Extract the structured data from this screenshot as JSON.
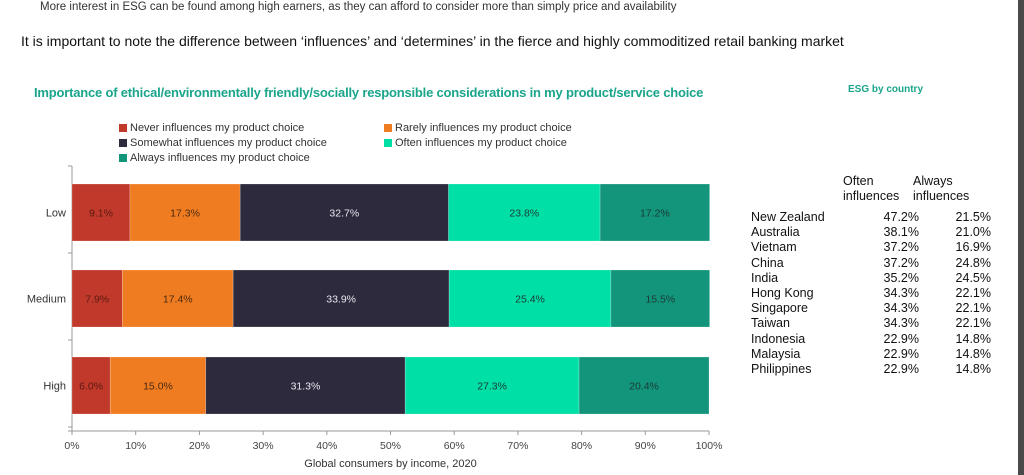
{
  "page": {
    "subnote": "More interest in ESG can be found among high earners, as they can afford to consider more than simply price and availability",
    "headline": "It is important to note the difference between ‘influences’ and ‘determines’ in the fierce and highly commoditized retail banking market"
  },
  "colors": {
    "never": "#c0392b",
    "rarely": "#f07c22",
    "somewhat": "#2e2a3e",
    "often": "#00dfa5",
    "always": "#12957a",
    "title": "#1aa58b"
  },
  "chart_data": {
    "type": "bar",
    "orientation": "horizontal",
    "stacked": true,
    "title": "Importance of ethical/environmentally friendly/socially responsible considerations in my product/service choice",
    "xlabel": "Global consumers by income, 2020",
    "ylabel": "",
    "xlim": [
      0,
      100
    ],
    "x_ticks": [
      "0%",
      "10%",
      "20%",
      "30%",
      "40%",
      "50%",
      "60%",
      "70%",
      "80%",
      "90%",
      "100%"
    ],
    "categories": [
      "Low",
      "Medium",
      "High"
    ],
    "legend_position": "top-left",
    "series": [
      {
        "name": "Never influences my product choice",
        "key": "never",
        "values": [
          9.1,
          7.9,
          6.0
        ],
        "labels": [
          "9.1%",
          "7.9%",
          "6.0%"
        ]
      },
      {
        "name": "Rarely influences my product choice",
        "key": "rarely",
        "values": [
          17.3,
          17.4,
          15.0
        ],
        "labels": [
          "17.3%",
          "17.4%",
          "15.0%"
        ]
      },
      {
        "name": "Somewhat influences my product choice",
        "key": "somewhat",
        "values": [
          32.7,
          33.9,
          31.3
        ],
        "labels": [
          "32.7%",
          "33.9%",
          "31.3%"
        ]
      },
      {
        "name": "Often influences my product choice",
        "key": "often",
        "values": [
          23.8,
          25.4,
          27.3
        ],
        "labels": [
          "23.8%",
          "25.4%",
          "27.3%"
        ]
      },
      {
        "name": "Always influences my product choice",
        "key": "always",
        "values": [
          17.2,
          15.5,
          20.4
        ],
        "labels": [
          "17.2%",
          "15.5%",
          "20.4%"
        ]
      }
    ]
  },
  "esg_table": {
    "title": "ESG by country",
    "headers": [
      {
        "line1": "Often",
        "line2": "influences"
      },
      {
        "line1": "Always",
        "line2": "influences"
      }
    ],
    "rows": [
      {
        "country": "New Zealand",
        "often": "47.2%",
        "always": "21.5%"
      },
      {
        "country": "Australia",
        "often": "38.1%",
        "always": "21.0%"
      },
      {
        "country": "Vietnam",
        "often": "37.2%",
        "always": "16.9%"
      },
      {
        "country": "China",
        "often": "37.2%",
        "always": "24.8%"
      },
      {
        "country": "India",
        "often": "35.2%",
        "always": "24.5%"
      },
      {
        "country": "Hong Kong",
        "often": "34.3%",
        "always": "22.1%"
      },
      {
        "country": "Singapore",
        "often": "34.3%",
        "always": "22.1%"
      },
      {
        "country": "Taiwan",
        "often": "34.3%",
        "always": "22.1%"
      },
      {
        "country": "Indonesia",
        "often": "22.9%",
        "always": "14.8%"
      },
      {
        "country": "Malaysia",
        "often": "22.9%",
        "always": "14.8%"
      },
      {
        "country": "Philippines",
        "often": "22.9%",
        "always": "14.8%"
      }
    ]
  }
}
